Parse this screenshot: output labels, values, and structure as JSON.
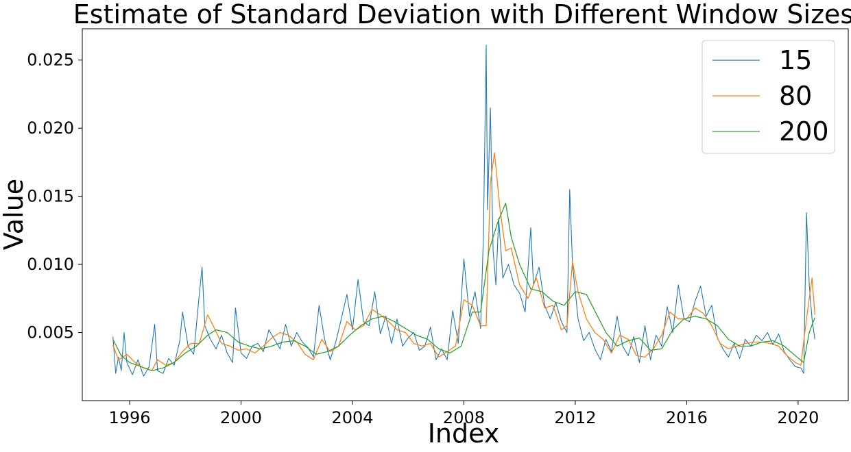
{
  "chart_data": {
    "type": "line",
    "title": "Estimate of Standard Deviation with Different Window Sizes",
    "xlabel": "Index",
    "ylabel": "Value",
    "xlim": [
      1994.3,
      2021.8
    ],
    "ylim": [
      0.0,
      0.0273
    ],
    "xticks": [
      1996,
      2000,
      2004,
      2008,
      2012,
      2016,
      2020
    ],
    "xtick_labels": [
      "1996",
      "2000",
      "2004",
      "2008",
      "2012",
      "2016",
      "2020"
    ],
    "yticks": [
      0.005,
      0.01,
      0.015,
      0.02,
      0.025
    ],
    "ytick_labels": [
      "0.005",
      "0.010",
      "0.015",
      "0.020",
      "0.025"
    ],
    "grid": false,
    "legend_position": "top-right",
    "series": [
      {
        "name": "15",
        "color": "#1f77b4",
        "stroke_width": 1.1,
        "x": [
          1995.4,
          1995.5,
          1995.6,
          1995.7,
          1995.8,
          1995.9,
          1996.1,
          1996.3,
          1996.5,
          1996.7,
          1996.9,
          1997.0,
          1997.2,
          1997.4,
          1997.6,
          1997.8,
          1997.9,
          1998.1,
          1998.3,
          1998.5,
          1998.6,
          1998.7,
          1998.9,
          1999.1,
          1999.3,
          1999.5,
          1999.7,
          1999.8,
          2000.0,
          2000.2,
          2000.4,
          2000.6,
          2000.8,
          2001.0,
          2001.2,
          2001.4,
          2001.6,
          2001.8,
          2002.0,
          2002.2,
          2002.4,
          2002.6,
          2002.8,
          2003.0,
          2003.2,
          2003.4,
          2003.6,
          2003.8,
          2004.0,
          2004.2,
          2004.4,
          2004.6,
          2004.8,
          2005.0,
          2005.2,
          2005.4,
          2005.6,
          2005.8,
          2006.0,
          2006.2,
          2006.4,
          2006.6,
          2006.8,
          2007.0,
          2007.2,
          2007.4,
          2007.6,
          2007.8,
          2008.0,
          2008.2,
          2008.4,
          2008.6,
          2008.7,
          2008.8,
          2008.85,
          2008.95,
          2009.05,
          2009.15,
          2009.25,
          2009.4,
          2009.6,
          2009.8,
          2010.0,
          2010.2,
          2010.4,
          2010.5,
          2010.7,
          2010.9,
          2011.1,
          2011.3,
          2011.5,
          2011.7,
          2011.8,
          2011.9,
          2012.1,
          2012.3,
          2012.5,
          2012.7,
          2012.9,
          2013.1,
          2013.3,
          2013.5,
          2013.7,
          2013.9,
          2014.1,
          2014.3,
          2014.5,
          2014.7,
          2014.9,
          2015.1,
          2015.3,
          2015.5,
          2015.7,
          2015.9,
          2016.1,
          2016.3,
          2016.5,
          2016.7,
          2016.9,
          2017.1,
          2017.3,
          2017.5,
          2017.7,
          2017.9,
          2018.1,
          2018.3,
          2018.5,
          2018.7,
          2018.9,
          2019.1,
          2019.3,
          2019.5,
          2019.7,
          2019.9,
          2020.1,
          2020.2,
          2020.3,
          2020.4,
          2020.5,
          2020.6
        ],
        "values": [
          0.0047,
          0.002,
          0.0032,
          0.0022,
          0.005,
          0.0028,
          0.0019,
          0.003,
          0.0018,
          0.0025,
          0.0056,
          0.0022,
          0.002,
          0.0031,
          0.0026,
          0.0044,
          0.0065,
          0.004,
          0.0034,
          0.0078,
          0.0098,
          0.0055,
          0.0045,
          0.0038,
          0.0048,
          0.0035,
          0.0028,
          0.0068,
          0.0035,
          0.0031,
          0.004,
          0.0042,
          0.0036,
          0.0052,
          0.0045,
          0.0038,
          0.0056,
          0.004,
          0.005,
          0.0043,
          0.0039,
          0.0032,
          0.007,
          0.0045,
          0.003,
          0.0043,
          0.006,
          0.0078,
          0.0052,
          0.0089,
          0.0058,
          0.0055,
          0.008,
          0.0049,
          0.0062,
          0.0042,
          0.006,
          0.004,
          0.0046,
          0.005,
          0.0037,
          0.004,
          0.0054,
          0.003,
          0.0038,
          0.003,
          0.0066,
          0.0042,
          0.0104,
          0.0062,
          0.008,
          0.0053,
          0.012,
          0.0261,
          0.014,
          0.0215,
          0.011,
          0.0085,
          0.0134,
          0.009,
          0.01,
          0.0085,
          0.0079,
          0.0065,
          0.0127,
          0.0085,
          0.0098,
          0.007,
          0.006,
          0.0072,
          0.0058,
          0.005,
          0.0155,
          0.01,
          0.006,
          0.0044,
          0.005,
          0.0038,
          0.003,
          0.0045,
          0.0036,
          0.0062,
          0.004,
          0.0033,
          0.0047,
          0.0028,
          0.0055,
          0.003,
          0.0048,
          0.004,
          0.0069,
          0.005,
          0.0085,
          0.006,
          0.0058,
          0.0073,
          0.0084,
          0.0062,
          0.007,
          0.0046,
          0.0038,
          0.0032,
          0.0042,
          0.0031,
          0.0045,
          0.004,
          0.0048,
          0.0044,
          0.005,
          0.0041,
          0.0049,
          0.0036,
          0.003,
          0.0025,
          0.0024,
          0.002,
          0.0138,
          0.0085,
          0.006,
          0.0045
        ]
      },
      {
        "name": "80",
        "color": "#ff7f0e",
        "stroke_width": 1.3,
        "x": [
          1995.4,
          1995.6,
          1995.9,
          1996.2,
          1996.5,
          1996.8,
          1997.0,
          1997.3,
          1997.6,
          1997.9,
          1998.2,
          1998.5,
          1998.8,
          1999.0,
          1999.3,
          1999.6,
          1999.9,
          2000.2,
          2000.5,
          2000.8,
          2001.1,
          2001.4,
          2001.7,
          2002.0,
          2002.3,
          2002.6,
          2002.9,
          2003.2,
          2003.5,
          2003.8,
          2004.1,
          2004.4,
          2004.7,
          2005.0,
          2005.3,
          2005.6,
          2005.9,
          2006.2,
          2006.5,
          2006.8,
          2007.1,
          2007.4,
          2007.7,
          2008.0,
          2008.3,
          2008.6,
          2008.8,
          2008.95,
          2009.1,
          2009.3,
          2009.5,
          2009.7,
          2010.0,
          2010.3,
          2010.6,
          2010.9,
          2011.2,
          2011.5,
          2011.7,
          2011.9,
          2012.1,
          2012.4,
          2012.7,
          2013.0,
          2013.3,
          2013.6,
          2013.9,
          2014.2,
          2014.5,
          2014.8,
          2015.1,
          2015.4,
          2015.7,
          2016.0,
          2016.3,
          2016.6,
          2016.9,
          2017.2,
          2017.5,
          2017.8,
          2018.1,
          2018.4,
          2018.7,
          2019.0,
          2019.3,
          2019.6,
          2019.9,
          2020.1,
          2020.3,
          2020.5,
          2020.6
        ],
        "values": [
          0.0041,
          0.003,
          0.0034,
          0.0028,
          0.0024,
          0.0022,
          0.003,
          0.0026,
          0.0028,
          0.0036,
          0.0042,
          0.0042,
          0.0063,
          0.0055,
          0.0042,
          0.004,
          0.0037,
          0.0038,
          0.0035,
          0.004,
          0.0046,
          0.005,
          0.0048,
          0.0043,
          0.0034,
          0.003,
          0.0045,
          0.0036,
          0.004,
          0.0058,
          0.0052,
          0.0055,
          0.0067,
          0.0063,
          0.0058,
          0.0052,
          0.005,
          0.0042,
          0.004,
          0.0042,
          0.0032,
          0.0036,
          0.004,
          0.0074,
          0.007,
          0.0055,
          0.0055,
          0.016,
          0.0182,
          0.014,
          0.011,
          0.0112,
          0.0085,
          0.0075,
          0.009,
          0.0068,
          0.007,
          0.0052,
          0.0055,
          0.0102,
          0.008,
          0.006,
          0.005,
          0.0045,
          0.0035,
          0.0048,
          0.0045,
          0.0033,
          0.0032,
          0.0038,
          0.0048,
          0.0065,
          0.006,
          0.006,
          0.0068,
          0.0064,
          0.0055,
          0.0042,
          0.0038,
          0.004,
          0.0042,
          0.0043,
          0.0043,
          0.0042,
          0.004,
          0.0033,
          0.0028,
          0.0026,
          0.006,
          0.009,
          0.0063
        ]
      },
      {
        "name": "200",
        "color": "#2ca02c",
        "stroke_width": 1.3,
        "x": [
          1995.4,
          1995.7,
          1996.0,
          1996.4,
          1996.8,
          1997.2,
          1997.6,
          1998.0,
          1998.4,
          1998.8,
          1999.1,
          1999.5,
          1999.9,
          2000.3,
          2000.7,
          2001.1,
          2001.5,
          2001.9,
          2002.3,
          2002.7,
          2003.1,
          2003.5,
          2003.9,
          2004.3,
          2004.7,
          2005.1,
          2005.5,
          2005.9,
          2006.3,
          2006.7,
          2007.1,
          2007.5,
          2007.9,
          2008.3,
          2008.6,
          2008.9,
          2009.2,
          2009.5,
          2009.7,
          2010.0,
          2010.4,
          2010.8,
          2011.2,
          2011.6,
          2012.0,
          2012.4,
          2012.8,
          2013.1,
          2013.5,
          2013.9,
          2014.3,
          2014.7,
          2015.1,
          2015.5,
          2015.9,
          2016.3,
          2016.7,
          2017.1,
          2017.5,
          2017.9,
          2018.3,
          2018.7,
          2019.1,
          2019.5,
          2019.9,
          2020.2,
          2020.4,
          2020.6
        ],
        "values": [
          0.0045,
          0.0033,
          0.0028,
          0.0025,
          0.0022,
          0.0024,
          0.0028,
          0.0035,
          0.004,
          0.0048,
          0.0052,
          0.005,
          0.0043,
          0.004,
          0.0038,
          0.004,
          0.0043,
          0.0044,
          0.004,
          0.0034,
          0.0036,
          0.004,
          0.0048,
          0.0055,
          0.006,
          0.0062,
          0.0058,
          0.0053,
          0.0048,
          0.0045,
          0.0038,
          0.0035,
          0.004,
          0.0065,
          0.0065,
          0.011,
          0.013,
          0.0145,
          0.012,
          0.01,
          0.0082,
          0.008,
          0.0073,
          0.007,
          0.008,
          0.0078,
          0.0062,
          0.005,
          0.004,
          0.0044,
          0.0046,
          0.0037,
          0.0038,
          0.0052,
          0.006,
          0.0062,
          0.006,
          0.0055,
          0.0045,
          0.004,
          0.004,
          0.0043,
          0.0044,
          0.004,
          0.0033,
          0.0028,
          0.005,
          0.0061
        ]
      }
    ]
  }
}
